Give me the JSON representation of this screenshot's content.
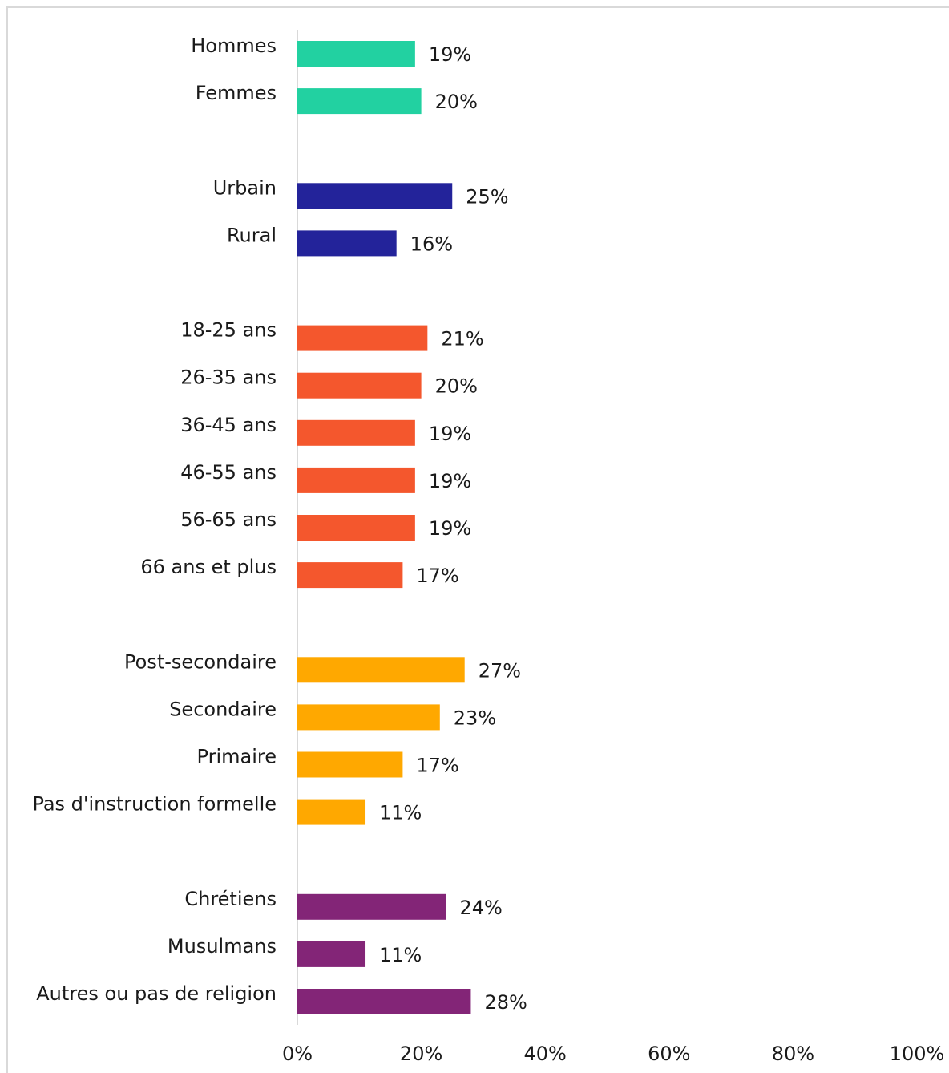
{
  "chart_data": {
    "type": "bar",
    "orientation": "horizontal",
    "xlim": [
      0,
      100
    ],
    "x_ticks": [
      "0%",
      "20%",
      "40%",
      "60%",
      "80%",
      "100%"
    ],
    "grid": false,
    "groups": [
      {
        "color": "#22d1a1",
        "items": [
          {
            "label": "Hommes",
            "value": 19,
            "value_label": "19%"
          },
          {
            "label": "Femmes",
            "value": 20,
            "value_label": "20%"
          }
        ]
      },
      {
        "color": "#23239a",
        "items": [
          {
            "label": "Urbain",
            "value": 25,
            "value_label": "25%"
          },
          {
            "label": "Rural",
            "value": 16,
            "value_label": "16%"
          }
        ]
      },
      {
        "color": "#f4572d",
        "items": [
          {
            "label": "18-25 ans",
            "value": 21,
            "value_label": "21%"
          },
          {
            "label": "26-35 ans",
            "value": 20,
            "value_label": "20%"
          },
          {
            "label": "36-45 ans",
            "value": 19,
            "value_label": "19%"
          },
          {
            "label": "46-55 ans",
            "value": 19,
            "value_label": "19%"
          },
          {
            "label": "56-65 ans",
            "value": 19,
            "value_label": "19%"
          },
          {
            "label": "66 ans et plus",
            "value": 17,
            "value_label": "17%"
          }
        ]
      },
      {
        "color": "#ffa800",
        "items": [
          {
            "label": "Post-secondaire",
            "value": 27,
            "value_label": "27%"
          },
          {
            "label": "Secondaire",
            "value": 23,
            "value_label": "23%"
          },
          {
            "label": "Primaire",
            "value": 17,
            "value_label": "17%"
          },
          {
            "label": "Pas d'instruction formelle",
            "value": 11,
            "value_label": "11%"
          }
        ]
      },
      {
        "color": "#832577",
        "items": [
          {
            "label": "Chrétiens",
            "value": 24,
            "value_label": "24%"
          },
          {
            "label": "Musulmans",
            "value": 11,
            "value_label": "11%"
          },
          {
            "label": "Autres ou pas de religion",
            "value": 28,
            "value_label": "28%"
          }
        ]
      }
    ]
  }
}
